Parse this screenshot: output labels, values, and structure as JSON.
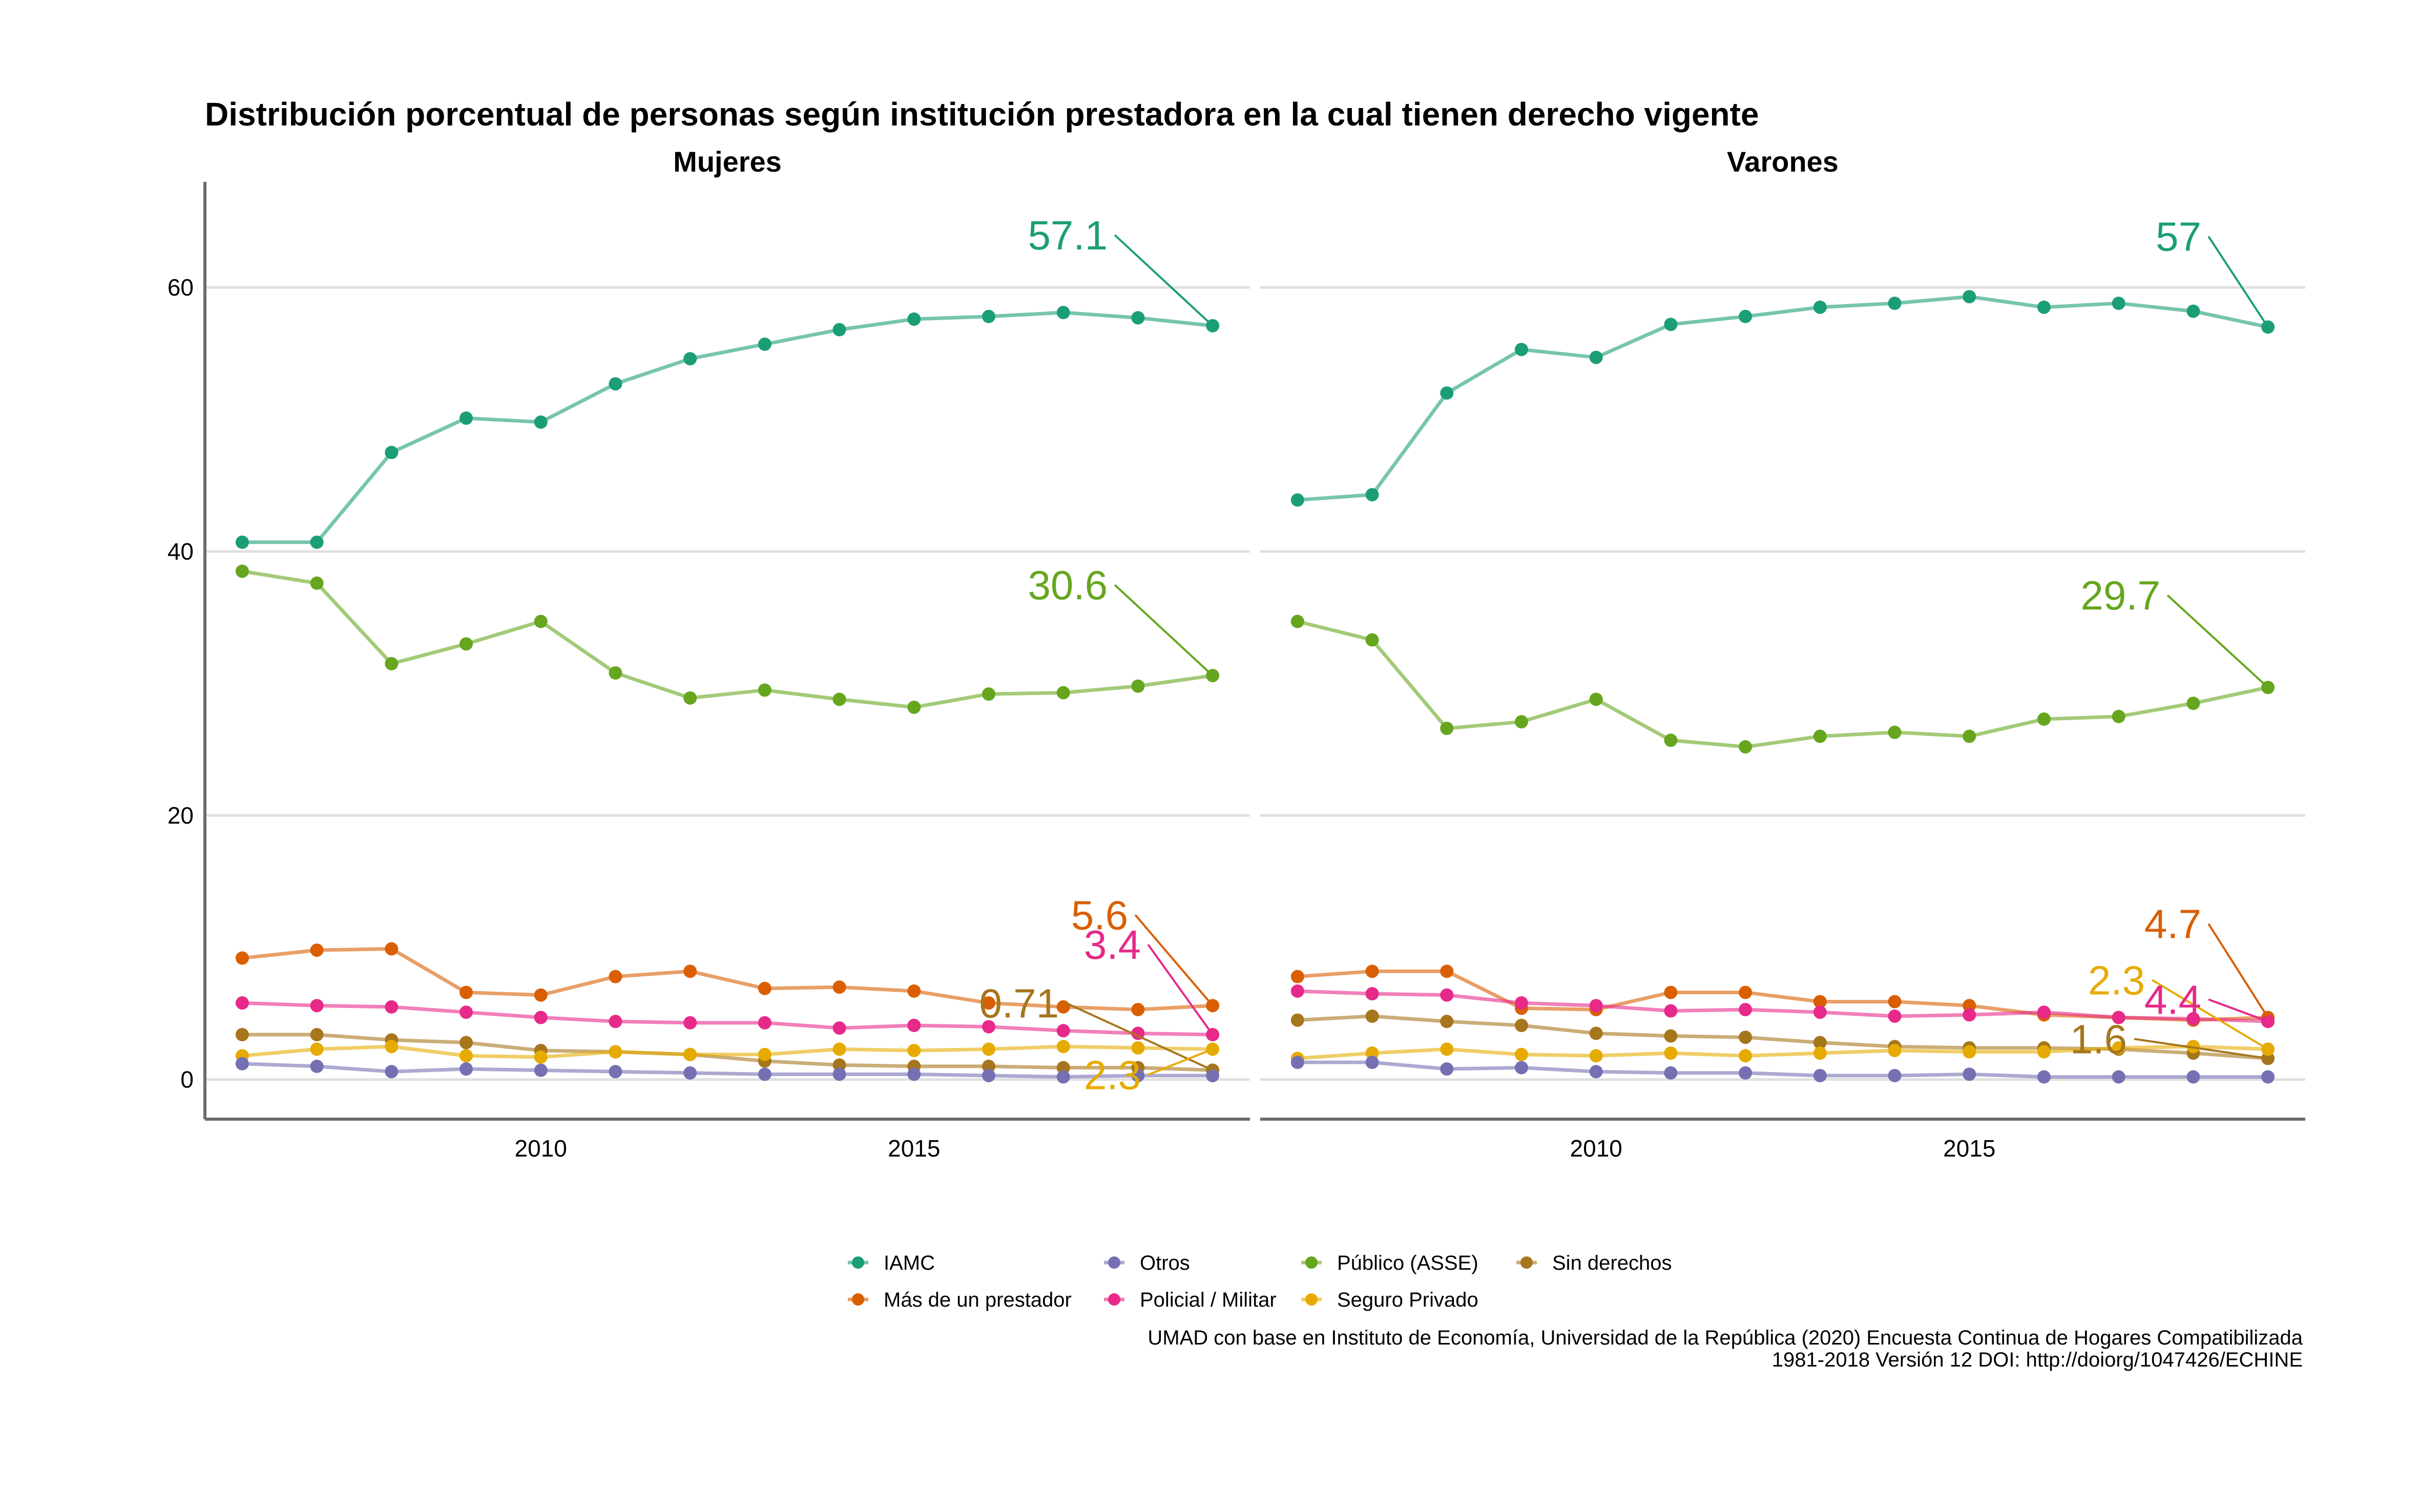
{
  "title": "Distribución porcentual de personas según institución prestadora en la cual tienen derecho vigente",
  "caption": {
    "line1": "UMAD con base en Instituto de Economía, Universidad de la República (2020) Encuesta Continua de Hogares Compatibilizada",
    "line2": "1981-2018 Versión 12 DOI: http://doiorg/1047426/ECHINE"
  },
  "chart_data": {
    "type": "line",
    "x": [
      2006,
      2007,
      2008,
      2009,
      2010,
      2011,
      2012,
      2013,
      2014,
      2015,
      2016,
      2017,
      2018,
      2019
    ],
    "ylim": [
      -3,
      68
    ],
    "xlim": [
      2005.5,
      2019.5
    ],
    "y_ticks": [
      0,
      20,
      40,
      60
    ],
    "x_ticks": [
      2010,
      2015
    ],
    "grid": "horizontal",
    "legend_position": "bottom",
    "series_meta": [
      {
        "name": "IAMC",
        "color": "#1B9E77"
      },
      {
        "name": "Más de un prestador",
        "color": "#D95F02"
      },
      {
        "name": "Otros",
        "color": "#7570B3"
      },
      {
        "name": "Policial / Militar",
        "color": "#E7298A"
      },
      {
        "name": "Público (ASSE)",
        "color": "#66A61E"
      },
      {
        "name": "Seguro Privado",
        "color": "#E6AB02"
      },
      {
        "name": "Sin derechos",
        "color": "#A6761D"
      }
    ],
    "legend_order": [
      "IAMC",
      "Más de un prestador",
      "Otros",
      "Policial / Militar",
      "Público (ASSE)",
      "Seguro Privado",
      "Sin derechos"
    ],
    "panels": [
      {
        "name": "Mujeres",
        "series": [
          {
            "name": "IAMC",
            "values": [
              40.7,
              40.7,
              47.5,
              50.1,
              49.8,
              52.7,
              54.6,
              55.7,
              56.8,
              57.6,
              57.8,
              58.1,
              57.7,
              57.1
            ]
          },
          {
            "name": "Público (ASSE)",
            "values": [
              38.5,
              37.6,
              31.5,
              33.0,
              34.7,
              30.8,
              28.9,
              29.5,
              28.8,
              28.2,
              29.2,
              29.3,
              29.8,
              30.6
            ]
          },
          {
            "name": "Más de un prestador",
            "values": [
              9.2,
              9.8,
              9.9,
              6.6,
              6.4,
              7.8,
              8.2,
              6.9,
              7.0,
              6.7,
              5.8,
              5.5,
              5.3,
              5.6
            ]
          },
          {
            "name": "Policial / Militar",
            "values": [
              5.8,
              5.6,
              5.5,
              5.1,
              4.7,
              4.4,
              4.3,
              4.3,
              3.9,
              4.1,
              4.0,
              3.7,
              3.5,
              3.4
            ]
          },
          {
            "name": "Sin derechos",
            "values": [
              3.4,
              3.4,
              3.0,
              2.8,
              2.2,
              2.1,
              1.9,
              1.4,
              1.1,
              1.0,
              1.0,
              0.9,
              0.9,
              0.71
            ]
          },
          {
            "name": "Seguro Privado",
            "values": [
              1.8,
              2.3,
              2.5,
              1.8,
              1.7,
              2.1,
              1.9,
              1.9,
              2.3,
              2.2,
              2.3,
              2.5,
              2.4,
              2.3
            ]
          },
          {
            "name": "Otros",
            "values": [
              1.2,
              1.0,
              0.6,
              0.8,
              0.7,
              0.6,
              0.5,
              0.4,
              0.4,
              0.4,
              0.3,
              0.2,
              0.3,
              0.3
            ]
          }
        ],
        "end_labels": [
          {
            "series": "IAMC",
            "text": "57.1"
          },
          {
            "series": "Público (ASSE)",
            "text": "30.6"
          },
          {
            "series": "Más de un prestador",
            "text": "5.6"
          },
          {
            "series": "Policial / Militar",
            "text": "3.4"
          },
          {
            "series": "Sin derechos",
            "text": "0.71"
          },
          {
            "series": "Seguro Privado",
            "text": "2.3"
          }
        ]
      },
      {
        "name": "Varones",
        "series": [
          {
            "name": "IAMC",
            "values": [
              43.9,
              44.3,
              52.0,
              55.3,
              54.7,
              57.2,
              57.8,
              58.5,
              58.8,
              59.3,
              58.5,
              58.8,
              58.2,
              57.0
            ]
          },
          {
            "name": "Público (ASSE)",
            "values": [
              34.7,
              33.3,
              26.6,
              27.1,
              28.8,
              25.7,
              25.2,
              26.0,
              26.3,
              26.0,
              27.3,
              27.5,
              28.5,
              29.7
            ]
          },
          {
            "name": "Más de un prestador",
            "values": [
              7.8,
              8.2,
              8.2,
              5.4,
              5.3,
              6.6,
              6.6,
              5.9,
              5.9,
              5.6,
              4.9,
              4.7,
              4.5,
              4.7
            ]
          },
          {
            "name": "Policial / Militar",
            "values": [
              6.7,
              6.5,
              6.4,
              5.8,
              5.6,
              5.2,
              5.3,
              5.1,
              4.8,
              4.9,
              5.1,
              4.7,
              4.6,
              4.4
            ]
          },
          {
            "name": "Sin derechos",
            "values": [
              4.5,
              4.8,
              4.4,
              4.1,
              3.5,
              3.3,
              3.2,
              2.8,
              2.5,
              2.4,
              2.4,
              2.3,
              2.0,
              1.6
            ]
          },
          {
            "name": "Seguro Privado",
            "values": [
              1.6,
              2.0,
              2.3,
              1.9,
              1.8,
              2.0,
              1.8,
              2.0,
              2.2,
              2.1,
              2.1,
              2.4,
              2.5,
              2.3
            ]
          },
          {
            "name": "Otros",
            "values": [
              1.3,
              1.3,
              0.8,
              0.9,
              0.6,
              0.5,
              0.5,
              0.3,
              0.3,
              0.4,
              0.2,
              0.2,
              0.2,
              0.2
            ]
          }
        ],
        "end_labels": [
          {
            "series": "IAMC",
            "text": "57"
          },
          {
            "series": "Público (ASSE)",
            "text": "29.7"
          },
          {
            "series": "Más de un prestador",
            "text": "4.7"
          },
          {
            "series": "Seguro Privado",
            "text": "2.3"
          },
          {
            "series": "Policial / Militar",
            "text": "4.4"
          },
          {
            "series": "Sin derechos",
            "text": "1.6"
          }
        ]
      }
    ]
  }
}
